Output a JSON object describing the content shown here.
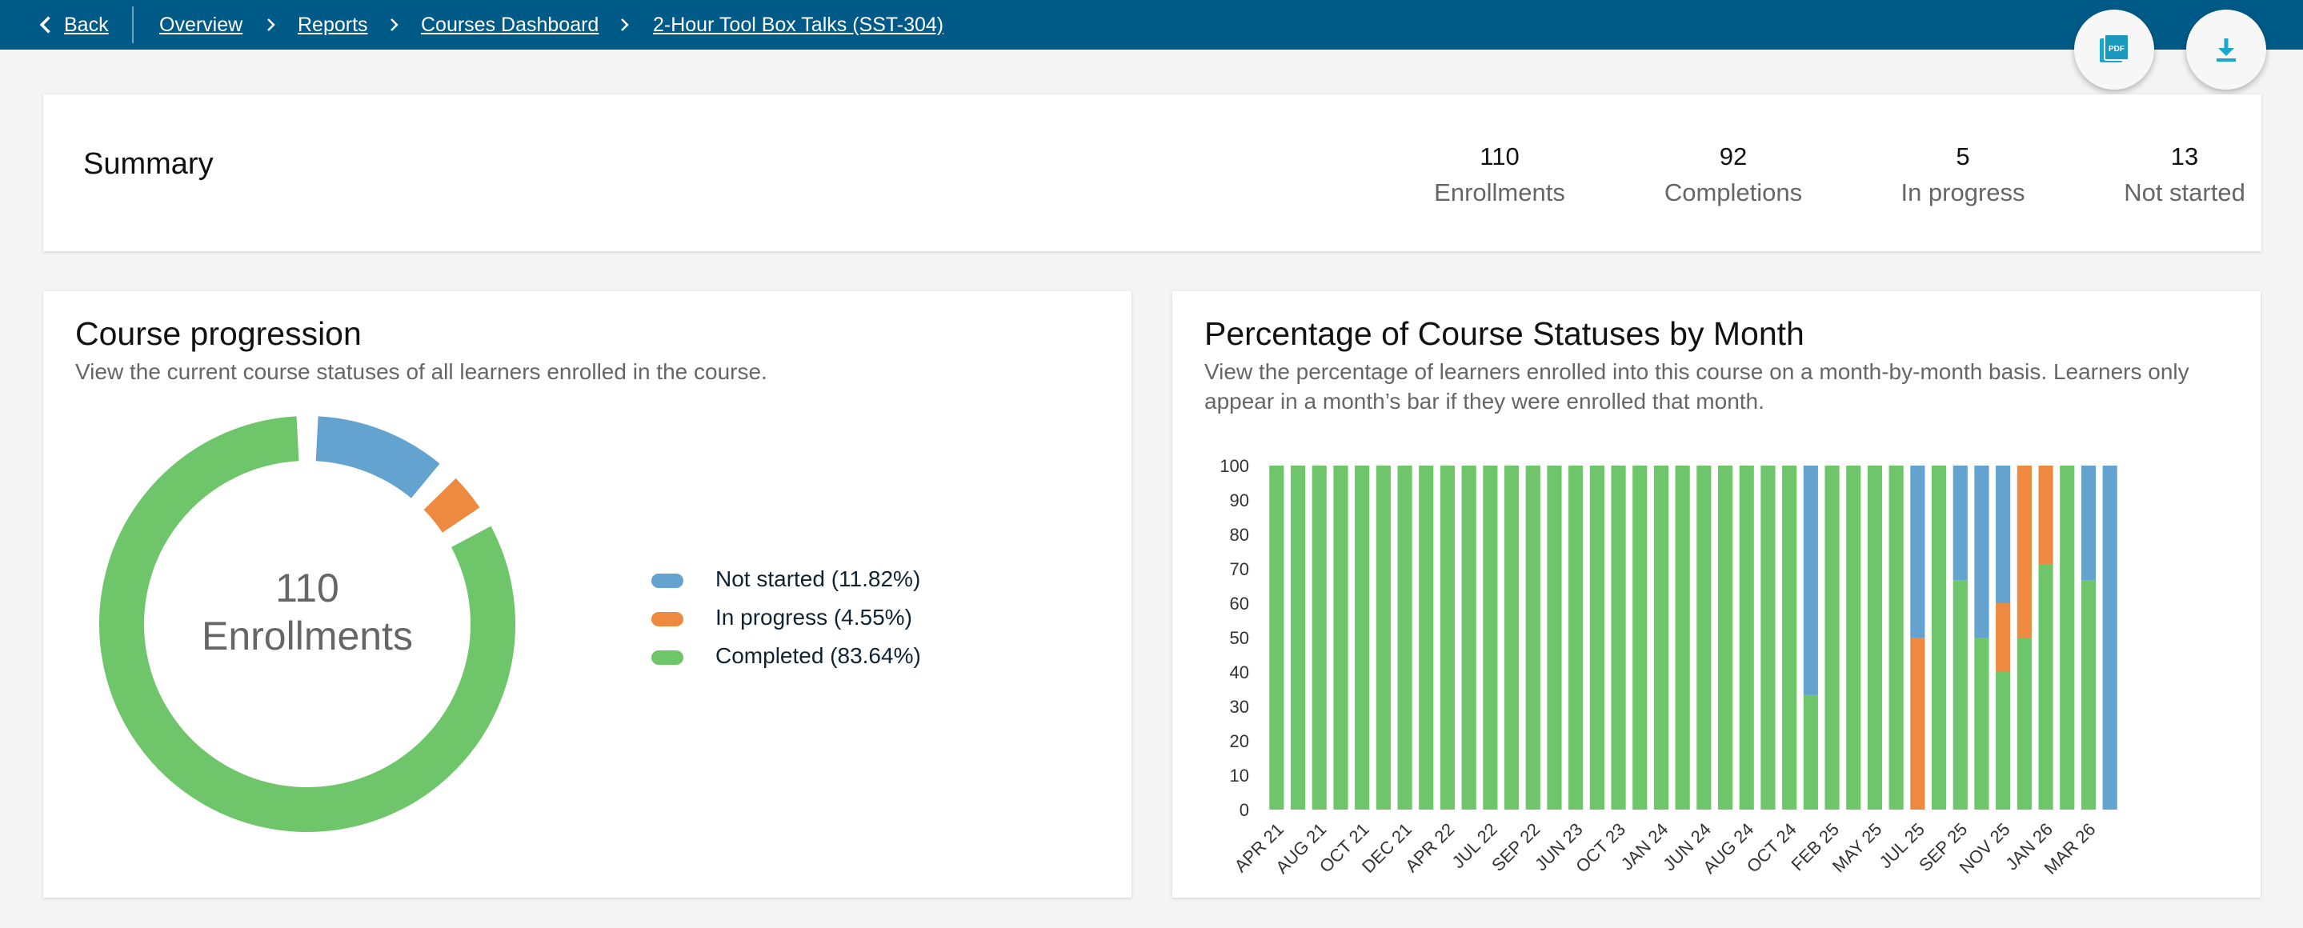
{
  "breadcrumb": {
    "back": "Back",
    "items": [
      "Overview",
      "Reports",
      "Courses Dashboard",
      "2-Hour Tool Box Talks (SST-304)"
    ]
  },
  "actions": {
    "pdf_icon": "pdf-icon",
    "download_icon": "download-icon"
  },
  "summary": {
    "title": "Summary",
    "stats": [
      {
        "value": "110",
        "label": "Enrollments"
      },
      {
        "value": "92",
        "label": "Completions"
      },
      {
        "value": "5",
        "label": "In progress"
      },
      {
        "value": "13",
        "label": "Not started"
      }
    ]
  },
  "progression": {
    "title": "Course progression",
    "subtitle": "View the current course statuses of all learners enrolled in the course.",
    "center_value": "110",
    "center_label": "Enrollments",
    "legend": [
      {
        "label": "Not started (11.82%)",
        "color": "#64a2d0",
        "value": 11.82
      },
      {
        "label": "In progress (4.55%)",
        "color": "#ee8a3f",
        "value": 4.55
      },
      {
        "label": "Completed (83.64%)",
        "color": "#6fc56a",
        "value": 83.64
      }
    ]
  },
  "monthly": {
    "title": "Percentage of Course Statuses by Month",
    "subtitle": "View the percentage of learners enrolled into this course on a month-by-month basis. Learners only appear in a month’s bar if they were enrolled that month."
  },
  "chart_data": {
    "type": "bar",
    "stacked": true,
    "colors": {
      "completed": "#6fc56a",
      "in_progress": "#ee8a3f",
      "not_started": "#64a2d0"
    },
    "ylim": [
      0,
      100
    ],
    "yticks": [
      0,
      10,
      20,
      30,
      40,
      50,
      60,
      70,
      80,
      90,
      100
    ],
    "tick_labels": [
      "APR 21",
      "AUG 21",
      "OCT 21",
      "DEC 21",
      "APR 22",
      "JUL 22",
      "SEP 22",
      "JUN 23",
      "OCT 23",
      "JAN 24",
      "JUN 24",
      "AUG 24",
      "OCT 24",
      "FEB 25",
      "MAY 25",
      "JUL 25",
      "SEP 25",
      "NOV 25",
      "JAN 26",
      "MAR 26"
    ],
    "series": [
      {
        "key": "completed",
        "values": [
          100,
          100,
          100,
          100,
          100,
          100,
          100,
          100,
          100,
          100,
          100,
          100,
          100,
          100,
          100,
          100,
          100,
          100,
          100,
          100,
          100,
          100,
          100,
          100,
          100,
          33.3,
          100,
          100,
          100,
          100,
          0,
          100,
          66.7,
          50,
          40,
          50,
          71.4,
          100,
          66.7,
          0
        ]
      },
      {
        "key": "in_progress",
        "values": [
          0,
          0,
          0,
          0,
          0,
          0,
          0,
          0,
          0,
          0,
          0,
          0,
          0,
          0,
          0,
          0,
          0,
          0,
          0,
          0,
          0,
          0,
          0,
          0,
          0,
          0,
          0,
          0,
          0,
          0,
          50,
          0,
          0,
          0,
          20,
          50,
          28.6,
          0,
          0,
          0
        ]
      },
      {
        "key": "not_started",
        "values": [
          0,
          0,
          0,
          0,
          0,
          0,
          0,
          0,
          0,
          0,
          0,
          0,
          0,
          0,
          0,
          0,
          0,
          0,
          0,
          0,
          0,
          0,
          0,
          0,
          0,
          66.7,
          0,
          0,
          0,
          0,
          50,
          0,
          33.3,
          50,
          40,
          0,
          0,
          0,
          33.3,
          100
        ]
      }
    ]
  }
}
